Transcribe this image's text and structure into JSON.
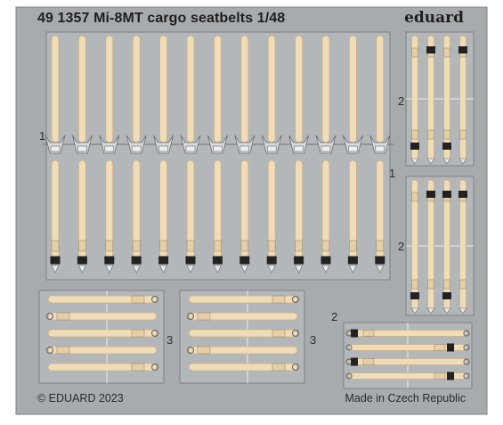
{
  "sheet": {
    "title": "49 1357 Mi-8MT cargo seatbelts 1/48",
    "brand": "eduard",
    "copyright": "© EDUARD 2023",
    "origin": "Made in Czech Republic"
  },
  "part_numbers": {
    "main_left": "1",
    "main_right": "1",
    "right_upper": "2",
    "right_lower": "2",
    "bottom_left": "3",
    "bottom_middle": "3",
    "bottom_right": "2"
  },
  "colors": {
    "fret": "#a8abae",
    "fret_edge": "#7d8083",
    "strap": "#f1dcb8",
    "strap_edge": "#c8b08a",
    "buckle": "#222222",
    "pad": "#e6cfa6"
  },
  "main_strap_count": 13,
  "right_column_strap_count": 4,
  "bottom_strap_count": 5,
  "bottom_right_strap_count": 4
}
